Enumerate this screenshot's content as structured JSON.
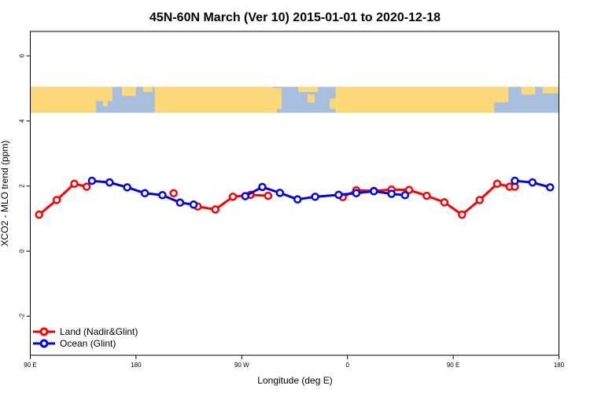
{
  "chart_data": {
    "type": "line",
    "title": "45N-60N March (Ver 10)   2015-01-01 to 2020-12-18",
    "xlabel": "Longitude (deg E)",
    "ylabel": "XCO2 - MLO trend (ppm)",
    "xlim": [
      90,
      540
    ],
    "ylim": [
      -3.2,
      6.75
    ],
    "x_ticks": [
      {
        "value": 90,
        "label": "90 E"
      },
      {
        "value": 180,
        "label": "180"
      },
      {
        "value": 270,
        "label": "90 W"
      },
      {
        "value": 360,
        "label": "0"
      },
      {
        "value": 450,
        "label": "90 E"
      },
      {
        "value": 540,
        "label": "180"
      }
    ],
    "y_ticks": [
      {
        "value": -2,
        "label": "-2"
      },
      {
        "value": 0,
        "label": "0"
      },
      {
        "value": 2,
        "label": "2"
      },
      {
        "value": 4,
        "label": "4"
      },
      {
        "value": 6,
        "label": "6"
      }
    ],
    "map_band": {
      "ymin": 4.25,
      "ymax": 5.05,
      "ocean_color": "#a8bedf",
      "land_color": "#fdd878"
    },
    "series": [
      {
        "name": "Land (Nadir&Glint)",
        "color": "#ff0000",
        "segments": [
          {
            "x": [
              97.5,
              112.5,
              127.5,
              138
            ],
            "y": [
              1.12,
              1.57,
              2.07,
              1.98
            ]
          },
          {
            "x": [
              212
            ],
            "y": [
              1.78
            ]
          },
          {
            "x": [
              232.5,
              247.5,
              262.5,
              277.5,
              292.5
            ],
            "y": [
              1.37,
              1.28,
              1.67,
              1.73,
              1.7
            ]
          },
          {
            "x": [
              356,
              367.5,
              382.5,
              397.5,
              412.5,
              427.5,
              442.5,
              457.5,
              472.5,
              487.5,
              498,
              502.5
            ],
            "y": [
              1.66,
              1.87,
              1.85,
              1.89,
              1.88,
              1.7,
              1.5,
              1.12,
              1.57,
              2.07,
              1.98,
              1.98
            ]
          }
        ]
      },
      {
        "name": "Ocean (Glint)",
        "color": "#0000ee",
        "segments": [
          {
            "x": [
              142.5,
              157.5,
              172.5,
              187.5,
              202.5,
              217.5,
              229
            ],
            "y": [
              2.16,
              2.11,
              1.96,
              1.78,
              1.72,
              1.49,
              1.43
            ]
          },
          {
            "x": [
              273,
              287.5,
              302.5,
              317.5,
              332.5,
              352.5,
              367.5,
              382.5,
              397.5,
              409
            ],
            "y": [
              1.69,
              1.97,
              1.79,
              1.59,
              1.67,
              1.73,
              1.78,
              1.84,
              1.76,
              1.72
            ]
          },
          {
            "x": [
              502.5,
              517.5,
              532.5
            ],
            "y": [
              2.16,
              2.11,
              1.96
            ]
          }
        ]
      }
    ],
    "legend_position": "bottom-left"
  }
}
